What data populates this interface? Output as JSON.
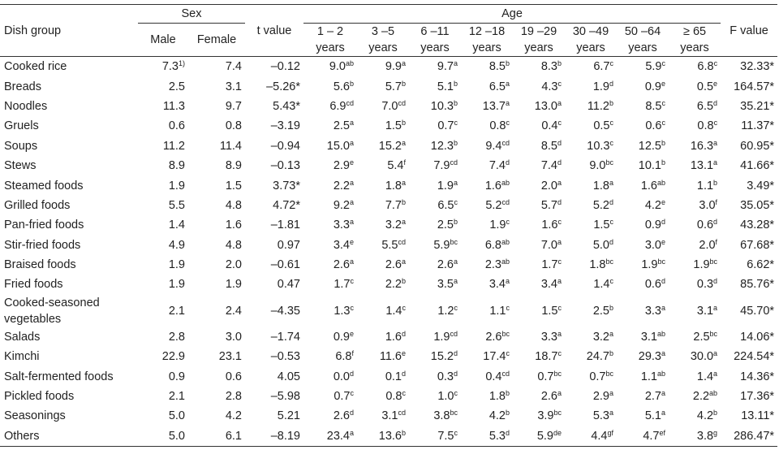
{
  "header": {
    "dish_group": "Dish group",
    "sex": "Sex",
    "male": "Male",
    "female": "Female",
    "t_value": "t value",
    "age": "Age",
    "f_value": "F value",
    "age_groups": [
      {
        "range": "1 – 2",
        "unit": "years"
      },
      {
        "range": "3 –5",
        "unit": "years"
      },
      {
        "range": "6 –11",
        "unit": "years"
      },
      {
        "range": "12 –18",
        "unit": "years"
      },
      {
        "range": "19 –29",
        "unit": "years"
      },
      {
        "range": "30 –49",
        "unit": "years"
      },
      {
        "range": "50 –64",
        "unit": "years"
      },
      {
        "range": "≥ 65",
        "unit": "years"
      }
    ]
  },
  "table": {
    "rows": [
      {
        "dish": "Cooked rice",
        "male": {
          "v": "7.3",
          "sup": "1)"
        },
        "female": "7.4",
        "t": "–0.12",
        "ages": [
          {
            "v": "9.0",
            "sup": "ab"
          },
          {
            "v": "9.9",
            "sup": "a"
          },
          {
            "v": "9.7",
            "sup": "a"
          },
          {
            "v": "8.5",
            "sup": "b"
          },
          {
            "v": "8.3",
            "sup": "b"
          },
          {
            "v": "6.7",
            "sup": "c"
          },
          {
            "v": "5.9",
            "sup": "c"
          },
          {
            "v": "6.8",
            "sup": "c"
          }
        ],
        "f": "32.33*"
      },
      {
        "dish": "Breads",
        "male": {
          "v": "2.5"
        },
        "female": "3.1",
        "t": "–5.26*",
        "ages": [
          {
            "v": "5.6",
            "sup": "b"
          },
          {
            "v": "5.7",
            "sup": "b"
          },
          {
            "v": "5.1",
            "sup": "b"
          },
          {
            "v": "6.5",
            "sup": "a"
          },
          {
            "v": "4.3",
            "sup": "c"
          },
          {
            "v": "1.9",
            "sup": "d"
          },
          {
            "v": "0.9",
            "sup": "e"
          },
          {
            "v": "0.5",
            "sup": "e"
          }
        ],
        "f": "164.57*"
      },
      {
        "dish": "Noodles",
        "male": {
          "v": "11.3"
        },
        "female": "9.7",
        "t": "5.43*",
        "ages": [
          {
            "v": "6.9",
            "sup": "cd"
          },
          {
            "v": "7.0",
            "sup": "cd"
          },
          {
            "v": "10.3",
            "sup": "b"
          },
          {
            "v": "13.7",
            "sup": "a"
          },
          {
            "v": "13.0",
            "sup": "a"
          },
          {
            "v": "11.2",
            "sup": "b"
          },
          {
            "v": "8.5",
            "sup": "c"
          },
          {
            "v": "6.5",
            "sup": "d"
          }
        ],
        "f": "35.21*"
      },
      {
        "dish": "Gruels",
        "male": {
          "v": "0.6"
        },
        "female": "0.8",
        "t": "–3.19",
        "ages": [
          {
            "v": "2.5",
            "sup": "a"
          },
          {
            "v": "1.5",
            "sup": "b"
          },
          {
            "v": "0.7",
            "sup": "c"
          },
          {
            "v": "0.8",
            "sup": "c"
          },
          {
            "v": "0.4",
            "sup": "c"
          },
          {
            "v": "0.5",
            "sup": "c"
          },
          {
            "v": "0.6",
            "sup": "c"
          },
          {
            "v": "0.8",
            "sup": "c"
          }
        ],
        "f": "11.37*"
      },
      {
        "dish": "Soups",
        "male": {
          "v": "11.2"
        },
        "female": "11.4",
        "t": "–0.94",
        "ages": [
          {
            "v": "15.0",
            "sup": "a"
          },
          {
            "v": "15.2",
            "sup": "a"
          },
          {
            "v": "12.3",
            "sup": "b"
          },
          {
            "v": "9.4",
            "sup": "cd"
          },
          {
            "v": "8.5",
            "sup": "d"
          },
          {
            "v": "10.3",
            "sup": "c"
          },
          {
            "v": "12.5",
            "sup": "b"
          },
          {
            "v": "16.3",
            "sup": "a"
          }
        ],
        "f": "60.95*"
      },
      {
        "dish": "Stews",
        "male": {
          "v": "8.9"
        },
        "female": "8.9",
        "t": "–0.13",
        "ages": [
          {
            "v": "2.9",
            "sup": "e"
          },
          {
            "v": "5.4",
            "sup": "f"
          },
          {
            "v": "7.9",
            "sup": "cd"
          },
          {
            "v": "7.4",
            "sup": "d"
          },
          {
            "v": "7.4",
            "sup": "d"
          },
          {
            "v": "9.0",
            "sup": "bc"
          },
          {
            "v": "10.1",
            "sup": "b"
          },
          {
            "v": "13.1",
            "sup": "a"
          }
        ],
        "f": "41.66*"
      },
      {
        "dish": "Steamed foods",
        "male": {
          "v": "1.9"
        },
        "female": "1.5",
        "t": "3.73*",
        "ages": [
          {
            "v": "2.2",
            "sup": "a"
          },
          {
            "v": "1.8",
            "sup": "a"
          },
          {
            "v": "1.9",
            "sup": "a"
          },
          {
            "v": "1.6",
            "sup": "ab"
          },
          {
            "v": "2.0",
            "sup": "a"
          },
          {
            "v": "1.8",
            "sup": "a"
          },
          {
            "v": "1.6",
            "sup": "ab"
          },
          {
            "v": "1.1",
            "sup": "b"
          }
        ],
        "f": "3.49*"
      },
      {
        "dish": "Grilled foods",
        "male": {
          "v": "5.5"
        },
        "female": "4.8",
        "t": "4.72*",
        "ages": [
          {
            "v": "9.2",
            "sup": "a"
          },
          {
            "v": "7.7",
            "sup": "b"
          },
          {
            "v": "6.5",
            "sup": "c"
          },
          {
            "v": "5.2",
            "sup": "cd"
          },
          {
            "v": "5.7",
            "sup": "d"
          },
          {
            "v": "5.2",
            "sup": "d"
          },
          {
            "v": "4.2",
            "sup": "e"
          },
          {
            "v": "3.0",
            "sup": "f"
          }
        ],
        "f": "35.05*"
      },
      {
        "dish": "Pan-fried foods",
        "male": {
          "v": "1.4"
        },
        "female": "1.6",
        "t": "–1.81",
        "ages": [
          {
            "v": "3.3",
            "sup": "a"
          },
          {
            "v": "3.2",
            "sup": "a"
          },
          {
            "v": "2.5",
            "sup": "b"
          },
          {
            "v": "1.9",
            "sup": "c"
          },
          {
            "v": "1.6",
            "sup": "c"
          },
          {
            "v": "1.5",
            "sup": "c"
          },
          {
            "v": "0.9",
            "sup": "d"
          },
          {
            "v": "0.6",
            "sup": "d"
          }
        ],
        "f": "43.28*"
      },
      {
        "dish": "Stir-fried foods",
        "male": {
          "v": "4.9"
        },
        "female": "4.8",
        "t": "0.97",
        "ages": [
          {
            "v": "3.4",
            "sup": "e"
          },
          {
            "v": "5.5",
            "sup": "cd"
          },
          {
            "v": "5.9",
            "sup": "bc"
          },
          {
            "v": "6.8",
            "sup": "ab"
          },
          {
            "v": "7.0",
            "sup": "a"
          },
          {
            "v": "5.0",
            "sup": "d"
          },
          {
            "v": "3.0",
            "sup": "e"
          },
          {
            "v": "2.0",
            "sup": "f"
          }
        ],
        "f": "67.68*"
      },
      {
        "dish": "Braised foods",
        "male": {
          "v": "1.9"
        },
        "female": "2.0",
        "t": "–0.61",
        "ages": [
          {
            "v": "2.6",
            "sup": "a"
          },
          {
            "v": "2.6",
            "sup": "a"
          },
          {
            "v": "2.6",
            "sup": "a"
          },
          {
            "v": "2.3",
            "sup": "ab"
          },
          {
            "v": "1.7",
            "sup": "c"
          },
          {
            "v": "1.8",
            "sup": "bc"
          },
          {
            "v": "1.9",
            "sup": "bc"
          },
          {
            "v": "1.9",
            "sup": "bc"
          }
        ],
        "f": "6.62*"
      },
      {
        "dish": "Fried foods",
        "male": {
          "v": "1.9"
        },
        "female": "1.9",
        "t": "0.47",
        "ages": [
          {
            "v": "1.7",
            "sup": "c"
          },
          {
            "v": "2.2",
            "sup": "b"
          },
          {
            "v": "3.5",
            "sup": "a"
          },
          {
            "v": "3.4",
            "sup": "a"
          },
          {
            "v": "3.4",
            "sup": "a"
          },
          {
            "v": "1.4",
            "sup": "c"
          },
          {
            "v": "0.6",
            "sup": "d"
          },
          {
            "v": "0.3",
            "sup": "d"
          }
        ],
        "f": "85.76*"
      },
      {
        "dish": "Cooked-seasoned vegetables",
        "male": {
          "v": "2.1"
        },
        "female": "2.4",
        "t": "–4.35",
        "ages": [
          {
            "v": "1.3",
            "sup": "c"
          },
          {
            "v": "1.4",
            "sup": "c"
          },
          {
            "v": "1.2",
            "sup": "c"
          },
          {
            "v": "1.1",
            "sup": "c"
          },
          {
            "v": "1.5",
            "sup": "c"
          },
          {
            "v": "2.5",
            "sup": "b"
          },
          {
            "v": "3.3",
            "sup": "a"
          },
          {
            "v": "3.1",
            "sup": "a"
          }
        ],
        "f": "45.70*"
      },
      {
        "dish": "Salads",
        "male": {
          "v": "2.8"
        },
        "female": "3.0",
        "t": "–1.74",
        "ages": [
          {
            "v": "0.9",
            "sup": "e"
          },
          {
            "v": "1.6",
            "sup": "d"
          },
          {
            "v": "1.9",
            "sup": "cd"
          },
          {
            "v": "2.6",
            "sup": "bc"
          },
          {
            "v": "3.3",
            "sup": "a"
          },
          {
            "v": "3.2",
            "sup": "a"
          },
          {
            "v": "3.1",
            "sup": "ab"
          },
          {
            "v": "2.5",
            "sup": "bc"
          }
        ],
        "f": "14.06*"
      },
      {
        "dish": "Kimchi",
        "male": {
          "v": "22.9"
        },
        "female": "23.1",
        "t": "–0.53",
        "ages": [
          {
            "v": "6.8",
            "sup": "f"
          },
          {
            "v": "11.6",
            "sup": "e"
          },
          {
            "v": "15.2",
            "sup": "d"
          },
          {
            "v": "17.4",
            "sup": "c"
          },
          {
            "v": "18.7",
            "sup": "c"
          },
          {
            "v": "24.7",
            "sup": "b"
          },
          {
            "v": "29.3",
            "sup": "a"
          },
          {
            "v": "30.0",
            "sup": "a"
          }
        ],
        "f": "224.54*"
      },
      {
        "dish": "Salt-fermented foods",
        "male": {
          "v": "0.9"
        },
        "female": "0.6",
        "t": "4.05",
        "ages": [
          {
            "v": "0.0",
            "sup": "d"
          },
          {
            "v": "0.1",
            "sup": "d"
          },
          {
            "v": "0.3",
            "sup": "d"
          },
          {
            "v": "0.4",
            "sup": "cd"
          },
          {
            "v": "0.7",
            "sup": "bc"
          },
          {
            "v": "0.7",
            "sup": "bc"
          },
          {
            "v": "1.1",
            "sup": "ab"
          },
          {
            "v": "1.4",
            "sup": "a"
          }
        ],
        "f": "14.36*"
      },
      {
        "dish": "Pickled foods",
        "male": {
          "v": "2.1"
        },
        "female": "2.8",
        "t": "–5.98",
        "ages": [
          {
            "v": "0.7",
            "sup": "c"
          },
          {
            "v": "0.8",
            "sup": "c"
          },
          {
            "v": "1.0",
            "sup": "c"
          },
          {
            "v": "1.8",
            "sup": "b"
          },
          {
            "v": "2.6",
            "sup": "a"
          },
          {
            "v": "2.9",
            "sup": "a"
          },
          {
            "v": "2.7",
            "sup": "a"
          },
          {
            "v": "2.2",
            "sup": "ab"
          }
        ],
        "f": "17.36*"
      },
      {
        "dish": "Seasonings",
        "male": {
          "v": "5.0"
        },
        "female": "4.2",
        "t": "5.21",
        "ages": [
          {
            "v": "2.6",
            "sup": "d"
          },
          {
            "v": "3.1",
            "sup": "cd"
          },
          {
            "v": "3.8",
            "sup": "bc"
          },
          {
            "v": "4.2",
            "sup": "b"
          },
          {
            "v": "3.9",
            "sup": "bc"
          },
          {
            "v": "5.3",
            "sup": "a"
          },
          {
            "v": "5.1",
            "sup": "a"
          },
          {
            "v": "4.2",
            "sup": "b"
          }
        ],
        "f": "13.11*"
      },
      {
        "dish": "Others",
        "male": {
          "v": "5.0"
        },
        "female": "6.1",
        "t": "–8.19",
        "ages": [
          {
            "v": "23.4",
            "sup": "a"
          },
          {
            "v": "13.6",
            "sup": "b"
          },
          {
            "v": "7.5",
            "sup": "c"
          },
          {
            "v": "5.3",
            "sup": "d"
          },
          {
            "v": "5.9",
            "sup": "de"
          },
          {
            "v": "4.4",
            "sup": "gf"
          },
          {
            "v": "4.7",
            "sup": "ef"
          },
          {
            "v": "3.8",
            "sup": "g"
          }
        ],
        "f": "286.47*"
      }
    ]
  }
}
